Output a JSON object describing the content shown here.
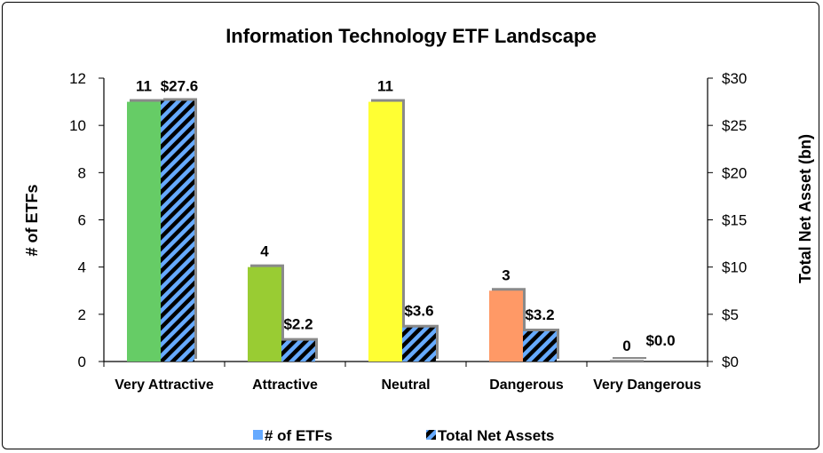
{
  "chart_data": {
    "type": "bar",
    "title": "Information Technology ETF Landscape",
    "categories": [
      "Very Attractive",
      "Attractive",
      "Neutral",
      "Dangerous",
      "Very Dangerous"
    ],
    "series": [
      {
        "name": "# of ETFs",
        "axis": "left",
        "values": [
          11,
          4,
          11,
          3,
          0
        ],
        "labels": [
          "11",
          "4",
          "11",
          "3",
          "0"
        ]
      },
      {
        "name": "Total Net Assets",
        "axis": "right",
        "values": [
          27.6,
          2.2,
          3.6,
          3.2,
          0.0
        ],
        "labels": [
          "$27.6",
          "$2.2",
          "$3.6",
          "$3.2",
          "$0.0"
        ]
      }
    ],
    "ylabel": "# of ETFs",
    "ylabel_right": "Total Net Asset (bn)",
    "ylim": [
      0,
      12
    ],
    "ylim_right": [
      0,
      30
    ],
    "yticks": [
      "0",
      "2",
      "4",
      "6",
      "8",
      "10",
      "12"
    ],
    "yticks_right": [
      "$0",
      "$5",
      "$10",
      "$15",
      "$20",
      "$25",
      "$30"
    ],
    "legend_position": "bottom",
    "colors": {
      "categories": [
        "#66cc66",
        "#99cc33",
        "#ffff33",
        "#ff9966",
        "#999999"
      ],
      "assets_fill": "#66aaff",
      "assets_stripe": "#000000"
    }
  }
}
